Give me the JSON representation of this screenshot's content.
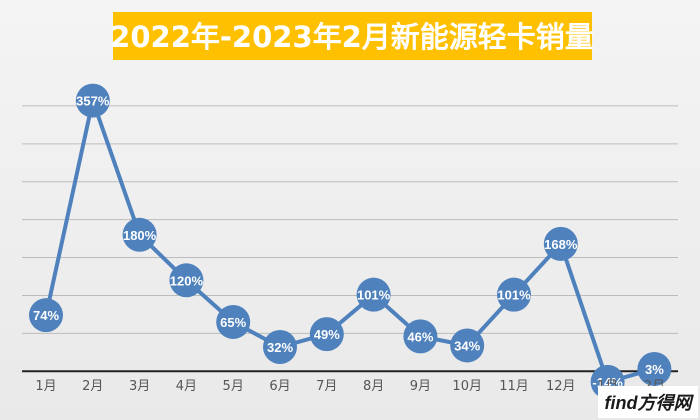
{
  "chart_data": {
    "type": "line",
    "title": "2022年-2023年2月新能源轻卡销量",
    "categories": [
      "1月",
      "2月",
      "3月",
      "4月",
      "5月",
      "6月",
      "7月",
      "8月",
      "9月",
      "10月",
      "11月",
      "12月",
      "1月",
      "2月"
    ],
    "series": [
      {
        "values": [
          74,
          357,
          180,
          120,
          65,
          32,
          49,
          101,
          46,
          34,
          101,
          168,
          -14,
          3
        ],
        "labels": [
          "74%",
          "357%",
          "180%",
          "120%",
          "65%",
          "32%",
          "49%",
          "101%",
          "46%",
          "34%",
          "101%",
          "168%",
          "-14%",
          "3%"
        ]
      }
    ],
    "ylim": [
      -30,
      400
    ],
    "grid": true,
    "legend": "none",
    "colors": {
      "line": "#4f81bd",
      "title_bg": "#ffc000",
      "title_text": "#ffffff",
      "zero_line": "#222222",
      "grid": "#bcbcbc"
    }
  },
  "watermark": {
    "text": "find方得网"
  }
}
